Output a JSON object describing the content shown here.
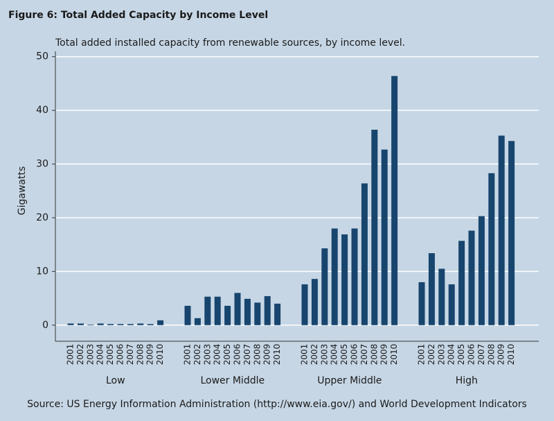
{
  "chart_data": {
    "type": "grouped-bar",
    "title": "Figure 6: Total Added Capacity by Income Level",
    "subtitle": "Total added installed capacity from renewable sources, by income level.",
    "y_label": "Gigawatts",
    "source": "Source: US Energy Information Administration (http://www.eia.gov/) and World Development Indicators",
    "categories": [
      "2001",
      "2002",
      "2003",
      "2004",
      "2005",
      "2006",
      "2007",
      "2008",
      "2009",
      "2010"
    ],
    "groups": [
      {
        "name": "Low",
        "values": [
          0.3,
          0.3,
          0.1,
          0.3,
          0.2,
          0.2,
          0.2,
          0.3,
          0.2,
          0.9
        ]
      },
      {
        "name": "Lower Middle",
        "values": [
          3.6,
          1.3,
          5.3,
          5.3,
          3.6,
          6.0,
          4.9,
          4.2,
          5.4,
          4.0
        ]
      },
      {
        "name": "Upper Middle",
        "values": [
          7.6,
          8.6,
          14.3,
          18.0,
          16.9,
          18.0,
          26.4,
          36.4,
          32.7,
          46.4
        ]
      },
      {
        "name": "High",
        "values": [
          8.0,
          13.4,
          10.5,
          7.6,
          15.7,
          17.6,
          20.3,
          28.3,
          35.3,
          34.3
        ]
      }
    ],
    "color": "#17456e",
    "ylim": [
      -3,
      51
    ],
    "yticks": [
      0,
      10,
      20,
      30,
      40,
      50
    ],
    "grid": true
  }
}
